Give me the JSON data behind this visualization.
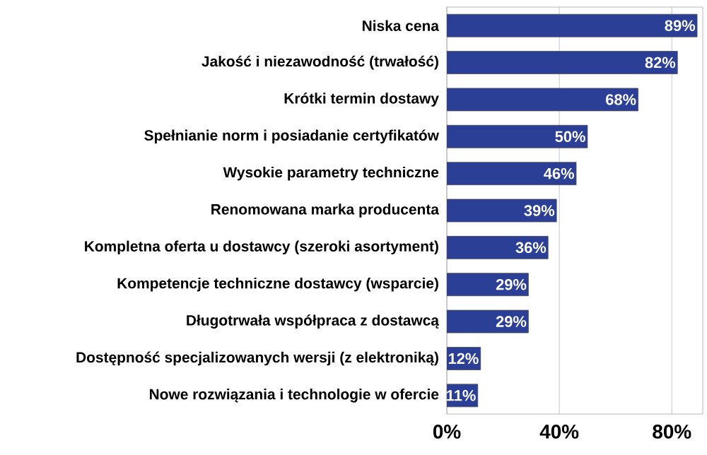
{
  "chart_data": {
    "type": "bar",
    "orientation": "horizontal",
    "categories": [
      "Niska cena",
      "Jakość i niezawodność (trwałość)",
      "Krótki termin dostawy",
      "Spełnianie norm i posiadanie certyfikatów",
      "Wysokie parametry techniczne",
      "Renomowana marka producenta",
      "Kompletna oferta u dostawcy (szeroki asortyment)",
      "Kompetencje techniczne dostawcy (wsparcie)",
      "Długotrwała współpraca z dostawcą",
      "Dostępność specjalizowanych wersji (z elektroniką)",
      "Nowe rozwiązania i technologie w ofercie"
    ],
    "values": [
      89,
      82,
      68,
      50,
      46,
      39,
      36,
      29,
      29,
      12,
      11
    ],
    "value_labels": [
      "89%",
      "82%",
      "68%",
      "50%",
      "46%",
      "39%",
      "36%",
      "29%",
      "29%",
      "12%",
      "11%"
    ],
    "color": "#2b3f96",
    "xlim": [
      0,
      91
    ],
    "xticks": [
      {
        "value": 0,
        "label": "0%"
      },
      {
        "value": 40,
        "label": "40%"
      },
      {
        "value": 80,
        "label": "80%"
      }
    ],
    "grid": "x"
  }
}
